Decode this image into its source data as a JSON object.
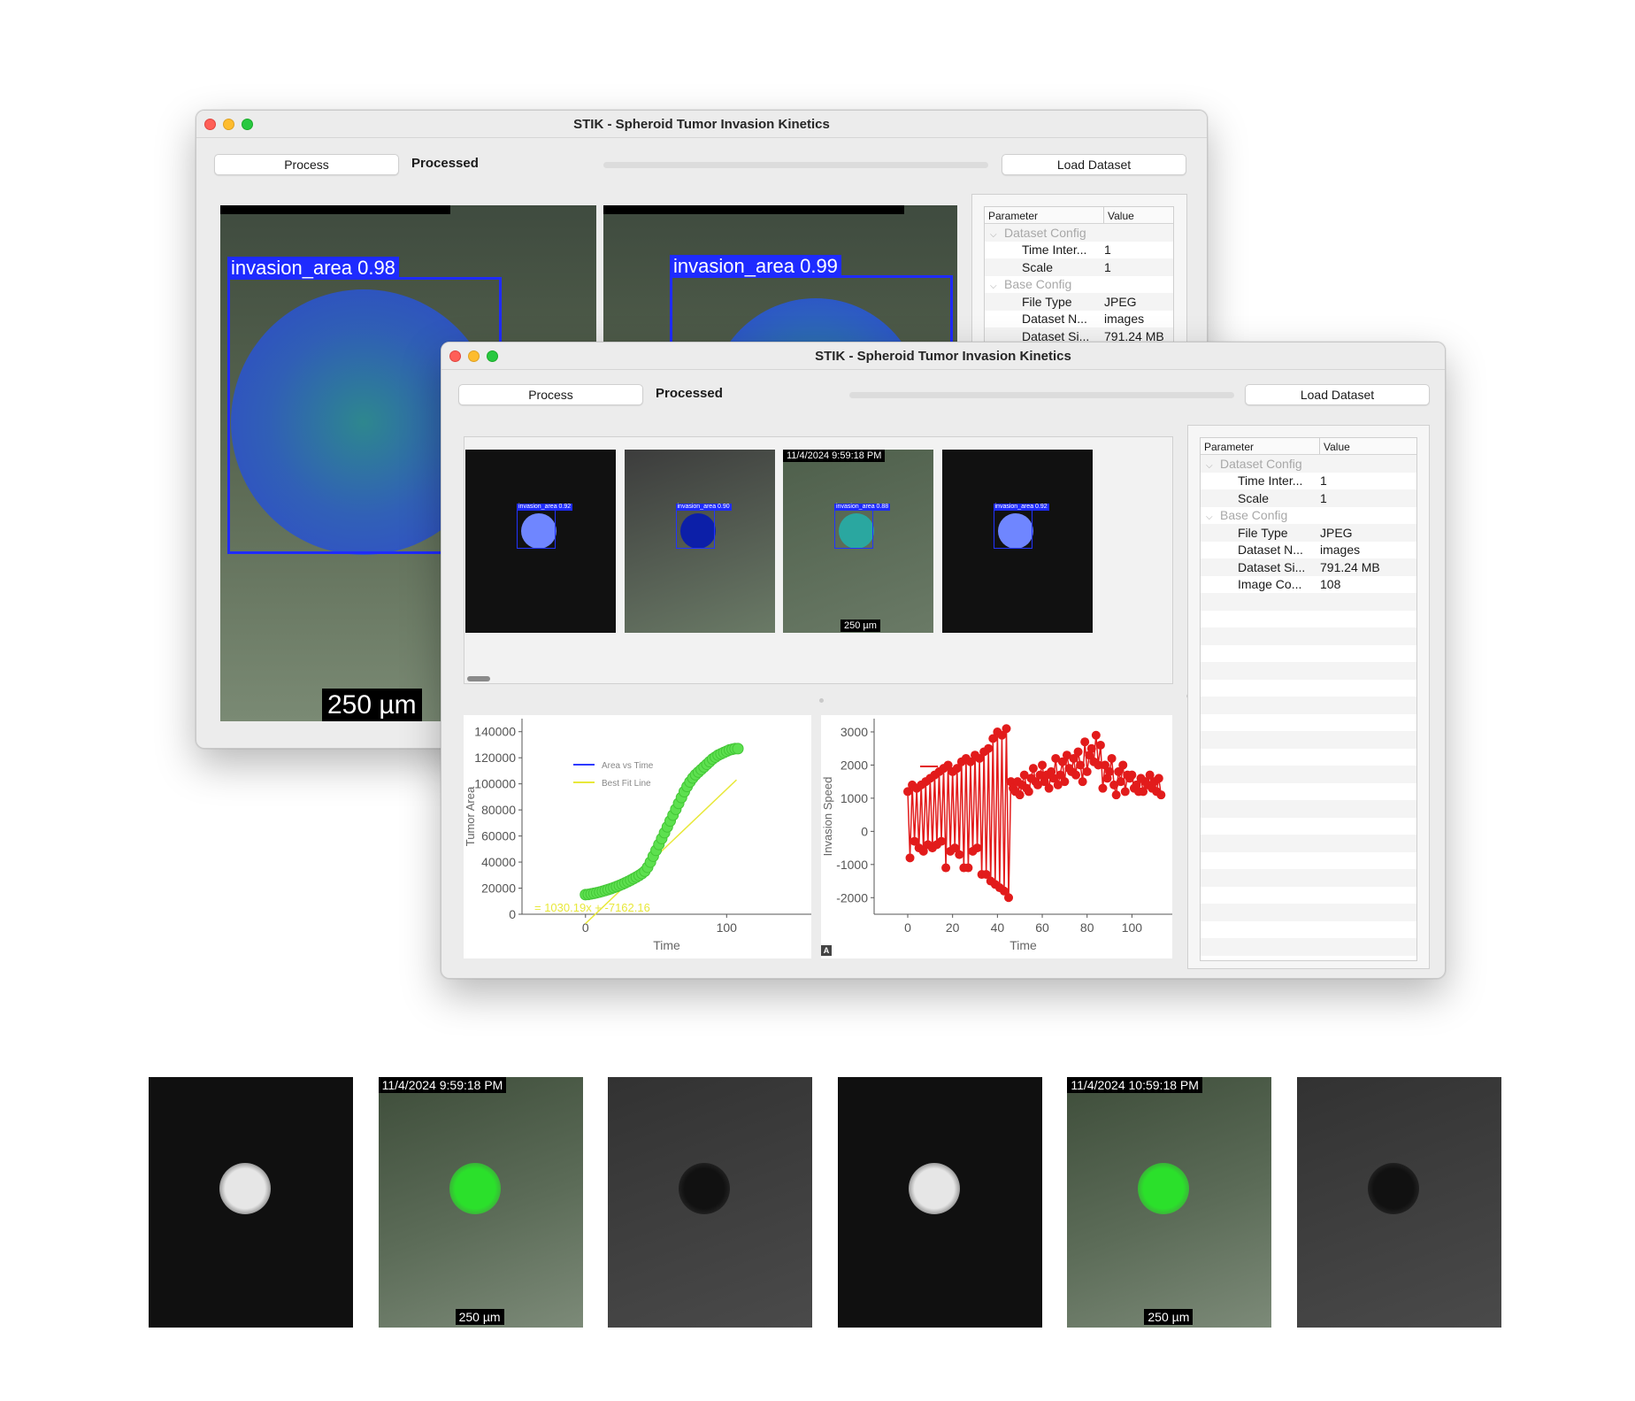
{
  "app": {
    "title": "STIK - Spheroid Tumor Invasion Kinetics",
    "process_label": "Process",
    "status": "Processed",
    "load_label": "Load Dataset",
    "progress": 1.0
  },
  "params": {
    "header": {
      "param": "Parameter",
      "value": "Value"
    },
    "rows_back": [
      {
        "kind": "group",
        "key": "Dataset Config",
        "value": ""
      },
      {
        "kind": "item",
        "key": "Time Inter...",
        "value": "1"
      },
      {
        "kind": "item",
        "key": "Scale",
        "value": "1"
      },
      {
        "kind": "group",
        "key": "Base Config",
        "value": ""
      },
      {
        "kind": "item",
        "key": "File Type",
        "value": "JPEG"
      },
      {
        "kind": "item",
        "key": "Dataset N...",
        "value": "images"
      },
      {
        "kind": "item",
        "key": "Dataset Si...",
        "value": "791.24 MB"
      }
    ],
    "rows_front": [
      {
        "kind": "group",
        "key": "Dataset Config",
        "value": ""
      },
      {
        "kind": "item",
        "key": "Time Inter...",
        "value": "1"
      },
      {
        "kind": "item",
        "key": "Scale",
        "value": "1"
      },
      {
        "kind": "group",
        "key": "Base Config",
        "value": ""
      },
      {
        "kind": "item",
        "key": "File Type",
        "value": "JPEG"
      },
      {
        "kind": "item",
        "key": "Dataset N...",
        "value": "images"
      },
      {
        "kind": "item",
        "key": "Dataset Si...",
        "value": "791.24 MB"
      },
      {
        "kind": "item",
        "key": "Image Co...",
        "value": "108"
      }
    ]
  },
  "back_view": {
    "left_label": "invasion_area  0.98",
    "right_label": "invasion_area  0.99",
    "scale_bar": "250 µm"
  },
  "thumbnails": [
    {
      "bg": "#111111",
      "blob": "#6f86ff",
      "label": "invasion_area  0.92",
      "timestamp": "",
      "scale": ""
    },
    {
      "bg": "#3c3c3c",
      "blob": "#0c1fa8",
      "label": "invasion_area  0.90",
      "timestamp": "",
      "scale": ""
    },
    {
      "bg": "#4e5f4b",
      "blob": "#2aa7a0",
      "label": "invasion_area  0.88",
      "timestamp": "11/4/2024 9:59:18 PM",
      "scale": "250 µm"
    },
    {
      "bg": "#111111",
      "blob": "#6f86ff",
      "label": "invasion_area  0.92",
      "timestamp": "",
      "scale": ""
    }
  ],
  "strip": [
    {
      "bg": "#101010",
      "blob": "#e6e6e6",
      "timestamp": "",
      "scale": ""
    },
    {
      "bg": "#4a5b46",
      "blob": "#2be02b",
      "timestamp": "11/4/2024 9:59:18 PM",
      "scale": "250 µm"
    },
    {
      "bg": "#3b3b3b",
      "blob": "#111111",
      "timestamp": "",
      "scale": ""
    },
    {
      "bg": "#101010",
      "blob": "#e6e6e6",
      "timestamp": "",
      "scale": ""
    },
    {
      "bg": "#4a5b46",
      "blob": "#2be02b",
      "timestamp": "11/4/2024 10:59:18 PM",
      "scale": "250 µm"
    },
    {
      "bg": "#3b3b3b",
      "blob": "#111111",
      "timestamp": "",
      "scale": ""
    }
  ],
  "chart_data": [
    {
      "type": "scatter",
      "xlabel": "Time",
      "ylabel": "Tumor Area",
      "xlim": [
        -45,
        160
      ],
      "ylim": [
        0,
        150000
      ],
      "xticks": [
        0,
        100
      ],
      "yticks": [
        0,
        20000,
        40000,
        60000,
        80000,
        100000,
        120000,
        140000
      ],
      "legend": [
        "Area vs Time",
        "Best Fit Line"
      ],
      "legend_position": "top-left",
      "fit_label": "= 1030.19x + -7162.16",
      "fit": {
        "slope": 1030.19,
        "intercept": -7162.16,
        "x_range": [
          0,
          107
        ]
      },
      "series": {
        "x": [
          0,
          2,
          4,
          6,
          8,
          10,
          12,
          14,
          16,
          18,
          20,
          22,
          24,
          26,
          28,
          30,
          32,
          34,
          36,
          38,
          40,
          42,
          44,
          46,
          48,
          50,
          52,
          54,
          56,
          58,
          60,
          62,
          64,
          66,
          68,
          70,
          72,
          74,
          76,
          78,
          80,
          82,
          84,
          86,
          88,
          90,
          92,
          94,
          96,
          98,
          100,
          102,
          104,
          106,
          108
        ],
        "y": [
          15000,
          15200,
          15600,
          16000,
          16500,
          17000,
          17600,
          18200,
          18900,
          19600,
          20400,
          21200,
          22100,
          23000,
          24000,
          25000,
          26100,
          27300,
          28500,
          29800,
          31200,
          33000,
          36000,
          40000,
          44500,
          49000,
          53500,
          58000,
          62500,
          67000,
          71500,
          76000,
          80500,
          85000,
          89500,
          94000,
          98000,
          101500,
          104500,
          107000,
          109000,
          111000,
          113000,
          115000,
          117000,
          119000,
          120500,
          122000,
          123000,
          124000,
          125000,
          126000,
          126500,
          127000,
          127000
        ]
      }
    },
    {
      "type": "line",
      "xlabel": "Time",
      "ylabel": "Invasion Speed",
      "xlim": [
        -15,
        118
      ],
      "ylim": [
        -2500,
        3400
      ],
      "xticks": [
        0,
        20,
        40,
        60,
        80,
        100
      ],
      "yticks": [
        -2000,
        -1000,
        0,
        1000,
        2000,
        3000
      ],
      "legend_position": "top-left",
      "series": {
        "x": [
          0,
          1,
          2,
          3,
          4,
          5,
          6,
          7,
          8,
          9,
          10,
          11,
          12,
          13,
          14,
          15,
          16,
          17,
          18,
          19,
          20,
          21,
          22,
          23,
          24,
          25,
          26,
          27,
          28,
          29,
          30,
          31,
          32,
          33,
          34,
          35,
          36,
          37,
          38,
          39,
          40,
          41,
          42,
          43,
          44,
          45,
          46,
          47,
          48,
          49,
          50,
          51,
          52,
          53,
          54,
          55,
          56,
          57,
          58,
          59,
          60,
          61,
          62,
          63,
          64,
          65,
          66,
          67,
          68,
          69,
          70,
          71,
          72,
          73,
          74,
          75,
          76,
          77,
          78,
          79,
          80,
          81,
          82,
          83,
          84,
          85,
          86,
          87,
          88,
          89,
          90,
          91,
          92,
          93,
          94,
          95,
          96,
          97,
          98,
          99,
          100,
          101,
          102,
          103,
          104,
          105,
          106,
          107,
          108,
          109,
          110,
          111,
          112,
          113
        ],
        "y": [
          1200,
          -800,
          1400,
          -300,
          1300,
          -500,
          1400,
          -600,
          1500,
          -400,
          1600,
          -500,
          1700,
          -400,
          1800,
          -300,
          1900,
          -1100,
          2000,
          -600,
          1800,
          -500,
          1900,
          -700,
          2100,
          -1100,
          2200,
          -1100,
          2100,
          -600,
          2300,
          -500,
          2200,
          -1300,
          2400,
          -1300,
          2500,
          -1500,
          2800,
          -1600,
          3000,
          -1700,
          2900,
          -1800,
          3100,
          -2000,
          1500,
          1300,
          1200,
          1500,
          1100,
          1400,
          1700,
          1300,
          1200,
          1600,
          1900,
          1500,
          1400,
          1700,
          2000,
          1500,
          1700,
          1300,
          1800,
          1600,
          2200,
          1400,
          1700,
          2100,
          1500,
          2300,
          1900,
          1800,
          2200,
          1700,
          2400,
          2000,
          1500,
          2700,
          1800,
          2300,
          2500,
          2100,
          2900,
          2000,
          2600,
          1300,
          2000,
          1600,
          1800,
          2200,
          1400,
          1100,
          1800,
          1500,
          2000,
          1200,
          1700,
          1600,
          1700,
          1300,
          1400,
          1200,
          1600,
          1200,
          1500,
          1400,
          1700,
          1300,
          1500,
          1200,
          1600,
          1100
        ]
      }
    }
  ],
  "colors": {
    "scatter_point": "#5de04f",
    "fit_line": "#e8e83a",
    "area_legend": "#2d3bff",
    "speed_line": "#e21b1b",
    "accent": "#2f7cf6"
  }
}
